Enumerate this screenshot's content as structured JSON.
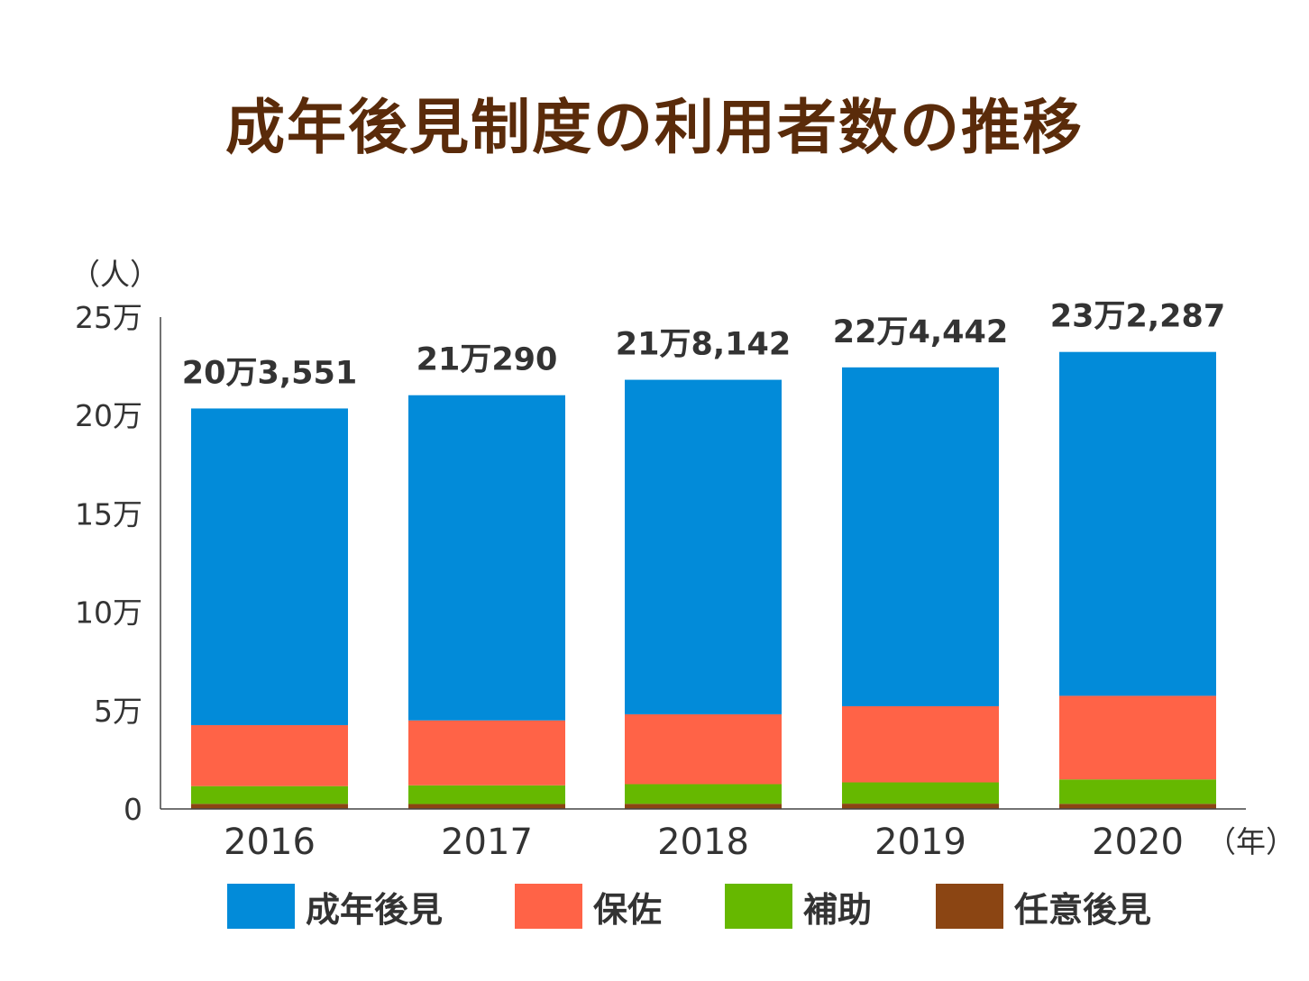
{
  "title": "成年後見制度の利用者数の推移",
  "y_unit": "（人）",
  "x_unit": "（年）",
  "chart_data": {
    "type": "bar",
    "stacked": true,
    "categories": [
      "2016",
      "2017",
      "2018",
      "2019",
      "2020"
    ],
    "ylim": [
      0,
      250000
    ],
    "yticks": [
      {
        "value": 0,
        "label": "0"
      },
      {
        "value": 50000,
        "label": "5万"
      },
      {
        "value": 100000,
        "label": "10万"
      },
      {
        "value": 150000,
        "label": "15万"
      },
      {
        "value": 200000,
        "label": "20万"
      },
      {
        "value": 250000,
        "label": "25万"
      }
    ],
    "series": [
      {
        "name": "任意後見",
        "color": "#8b4513",
        "values": [
          2600,
          2500,
          2600,
          2700,
          2600
        ]
      },
      {
        "name": "補助",
        "color": "#66b800",
        "values": [
          9000,
          9500,
          10000,
          10800,
          12400
        ]
      },
      {
        "name": "保佐",
        "color": "#ff6347",
        "values": [
          31000,
          33000,
          35500,
          38700,
          42500
        ]
      },
      {
        "name": "成年後見",
        "color": "#028bd9",
        "values": [
          160951,
          165290,
          170042,
          172242,
          174787
        ]
      }
    ],
    "totals": [
      "20万3,551",
      "21万290",
      "21万8,142",
      "22万4,442",
      "23万2,287"
    ],
    "total_values": [
      203551,
      210290,
      218142,
      224442,
      232287
    ],
    "legend_order": [
      "成年後見",
      "保佐",
      "補助",
      "任意後見"
    ],
    "legend_position": "bottom"
  }
}
